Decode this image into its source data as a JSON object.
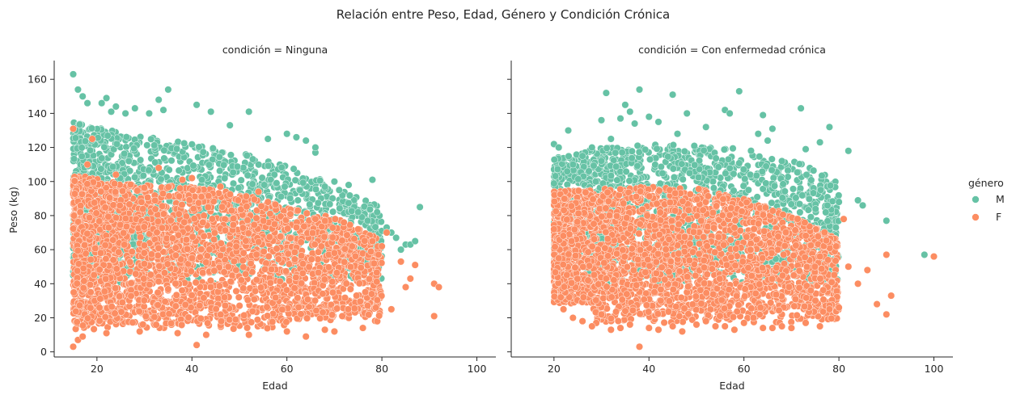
{
  "suptitle": "Relación entre Peso, Edad, Género y Condición Crónica",
  "legend": {
    "title": "género",
    "items": [
      {
        "label": "M",
        "color": "#66c2a5"
      },
      {
        "label": "F",
        "color": "#fc8d62"
      }
    ]
  },
  "chart_data": [
    {
      "type": "scatter",
      "title": "condición = Ninguna",
      "xlabel": "Edad",
      "ylabel": "Peso (kg)",
      "xlim": [
        11,
        104
      ],
      "ylim": [
        -3,
        171
      ],
      "xticks": [
        20,
        40,
        60,
        80,
        100
      ],
      "yticks": [
        0,
        20,
        40,
        60,
        80,
        100,
        120,
        140,
        160
      ],
      "grid": false,
      "series": [
        {
          "name": "M",
          "color": "#66c2a5",
          "description": "dense band",
          "points": [
            [
              15,
              163
            ],
            [
              16,
              154
            ],
            [
              17,
              150
            ],
            [
              18,
              146
            ],
            [
              21,
              146
            ],
            [
              22,
              149
            ],
            [
              23,
              141
            ],
            [
              24,
              144
            ],
            [
              26,
              140
            ],
            [
              28,
              143
            ],
            [
              31,
              140
            ],
            [
              33,
              148
            ],
            [
              34,
              142
            ],
            [
              35,
              154
            ],
            [
              41,
              145
            ],
            [
              44,
              141
            ],
            [
              48,
              133
            ],
            [
              52,
              141
            ],
            [
              56,
              125
            ],
            [
              60,
              128
            ],
            [
              62,
              126
            ],
            [
              64,
              124
            ],
            [
              66,
              117
            ],
            [
              68,
              97
            ],
            [
              70,
              100
            ],
            [
              71,
              95
            ],
            [
              73,
              98
            ],
            [
              75,
              82
            ],
            [
              77,
              77
            ],
            [
              79,
              82
            ],
            [
              80,
              71
            ],
            [
              81,
              73
            ],
            [
              82,
              70
            ],
            [
              83,
              67
            ],
            [
              84,
              60
            ],
            [
              85,
              63
            ],
            [
              86,
              63
            ],
            [
              87,
              65
            ],
            [
              88,
              85
            ],
            [
              78,
              101
            ],
            [
              66,
              120
            ],
            [
              82,
              25
            ]
          ]
        },
        {
          "name": "F",
          "color": "#fc8d62",
          "description": "dense band",
          "points": [
            [
              15,
              131
            ],
            [
              15,
              3
            ],
            [
              16,
              7
            ],
            [
              17,
              9
            ],
            [
              18,
              110
            ],
            [
              19,
              125
            ],
            [
              22,
              11
            ],
            [
              24,
              104
            ],
            [
              29,
              12
            ],
            [
              33,
              108
            ],
            [
              37,
              11
            ],
            [
              38,
              101
            ],
            [
              40,
              102
            ],
            [
              41,
              4
            ],
            [
              43,
              10
            ],
            [
              46,
              97
            ],
            [
              52,
              10
            ],
            [
              54,
              94
            ],
            [
              56,
              88
            ],
            [
              60,
              12
            ],
            [
              64,
              9
            ],
            [
              66,
              78
            ],
            [
              68,
              13
            ],
            [
              70,
              12
            ],
            [
              72,
              76
            ],
            [
              75,
              72
            ],
            [
              76,
              14
            ],
            [
              78,
              65
            ],
            [
              80,
              62
            ],
            [
              81,
              70
            ],
            [
              82,
              25
            ],
            [
              84,
              53
            ],
            [
              85,
              38
            ],
            [
              86,
              43
            ],
            [
              87,
              51
            ],
            [
              91,
              21
            ],
            [
              91,
              40
            ],
            [
              92,
              38
            ]
          ]
        }
      ]
    },
    {
      "type": "scatter",
      "title": "condición = Con enfermedad crónica",
      "xlabel": "Edad",
      "xlim": [
        11,
        104
      ],
      "ylim": [
        -3,
        171
      ],
      "xticks": [
        20,
        40,
        60,
        80,
        100
      ],
      "grid": false,
      "series": [
        {
          "name": "M",
          "color": "#66c2a5",
          "description": "dense band",
          "points": [
            [
              20,
              122
            ],
            [
              21,
              120
            ],
            [
              23,
              130
            ],
            [
              24,
              110
            ],
            [
              26,
              115
            ],
            [
              28,
              120
            ],
            [
              30,
              136
            ],
            [
              31,
              152
            ],
            [
              32,
              125
            ],
            [
              34,
              137
            ],
            [
              35,
              145
            ],
            [
              36,
              141
            ],
            [
              37,
              134
            ],
            [
              38,
              154
            ],
            [
              40,
              138
            ],
            [
              42,
              135
            ],
            [
              45,
              151
            ],
            [
              46,
              128
            ],
            [
              48,
              140
            ],
            [
              52,
              132
            ],
            [
              56,
              142
            ],
            [
              57,
              140
            ],
            [
              59,
              153
            ],
            [
              63,
              128
            ],
            [
              64,
              139
            ],
            [
              65,
              124
            ],
            [
              66,
              131
            ],
            [
              68,
              112
            ],
            [
              72,
              143
            ],
            [
              73,
              119
            ],
            [
              76,
              123
            ],
            [
              78,
              132
            ],
            [
              80,
              88
            ],
            [
              82,
              118
            ],
            [
              84,
              89
            ],
            [
              85,
              86
            ],
            [
              90,
              77
            ],
            [
              98,
              57
            ]
          ]
        },
        {
          "name": "F",
          "color": "#fc8d62",
          "description": "dense band",
          "points": [
            [
              20,
              72
            ],
            [
              21,
              55
            ],
            [
              22,
              25
            ],
            [
              24,
              20
            ],
            [
              26,
              18
            ],
            [
              28,
              15
            ],
            [
              30,
              22
            ],
            [
              32,
              13
            ],
            [
              34,
              14
            ],
            [
              36,
              16
            ],
            [
              38,
              3
            ],
            [
              40,
              14
            ],
            [
              42,
              13
            ],
            [
              45,
              15
            ],
            [
              47,
              12
            ],
            [
              50,
              16
            ],
            [
              52,
              18
            ],
            [
              54,
              15
            ],
            [
              56,
              15
            ],
            [
              58,
              13
            ],
            [
              60,
              17
            ],
            [
              62,
              20
            ],
            [
              64,
              14
            ],
            [
              66,
              14
            ],
            [
              68,
              15
            ],
            [
              70,
              14
            ],
            [
              73,
              17
            ],
            [
              76,
              15
            ],
            [
              78,
              25
            ],
            [
              80,
              26
            ],
            [
              81,
              78
            ],
            [
              82,
              50
            ],
            [
              84,
              40
            ],
            [
              86,
              48
            ],
            [
              88,
              28
            ],
            [
              90,
              22
            ],
            [
              90,
              57
            ],
            [
              91,
              33
            ],
            [
              100,
              56
            ]
          ]
        }
      ]
    }
  ]
}
